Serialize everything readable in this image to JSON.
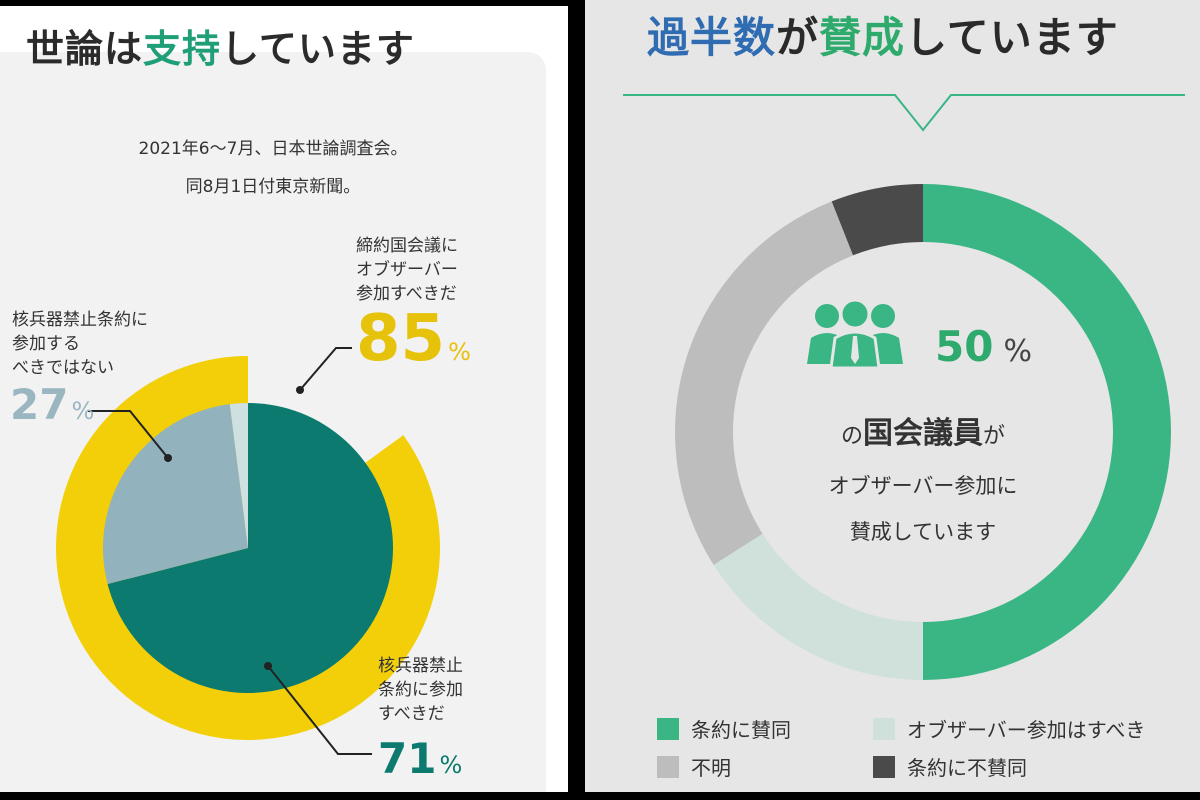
{
  "left": {
    "title_plain1": "世論",
    "title_plain2": "は",
    "title_hl": "支持",
    "title_plain3": "しています",
    "source_line1": "2021年6～7月、日本世論調査会。",
    "source_line2": "同8月1日付東京新聞。",
    "colors": {
      "outer": "#f2cf09",
      "inner_main": "#0c7a6e",
      "inner_no": "#92b2bd",
      "inner_rest": "#cfe0e0"
    }
  },
  "right": {
    "title_b": "過半数",
    "title_plain1": "が",
    "title_g": "賛成",
    "title_plain2": "しています",
    "center_value": "50",
    "center_unit": "%",
    "center_line1_pre": "の",
    "center_line1_bold": "国会議員",
    "center_line1_post": "が",
    "center_line2": "オブザーバー参加に",
    "center_line3": "賛成しています",
    "icon": "people-group-icon"
  },
  "chart_data": [
    {
      "type": "pie",
      "name": "nested-pie",
      "series": [
        {
          "name": "outer-ring",
          "slices": [
            {
              "label": "締約国会議に\nオブザーバー\n参加すべきだ",
              "value": 85,
              "display": "85",
              "unit": "%",
              "color": "#f2cf09"
            }
          ]
        },
        {
          "name": "inner-pie",
          "slices": [
            {
              "label": "核兵器禁止\n条約に参加\nすべきだ",
              "value": 71,
              "display": "71",
              "unit": "%",
              "color": "#0c7a6e"
            },
            {
              "label": "核兵器禁止条約に\n参加する\nべきではない",
              "value": 27,
              "display": "27",
              "unit": "%",
              "color": "#92b2bd"
            },
            {
              "label": "",
              "value": 2,
              "color": "#cfe0e0"
            }
          ]
        }
      ]
    },
    {
      "type": "pie",
      "name": "donut",
      "slices": [
        {
          "label": "条約に賛同",
          "value": 50,
          "color": "#3ab584"
        },
        {
          "label": "オブザーバー参加はすべき",
          "value": 16,
          "color": "#cfe1da"
        },
        {
          "label": "不明",
          "value": 28,
          "color": "#bdbdbd"
        },
        {
          "label": "条約に不賛同",
          "value": 6,
          "color": "#4a4a4a"
        }
      ],
      "legend_placement": "bottom"
    }
  ]
}
